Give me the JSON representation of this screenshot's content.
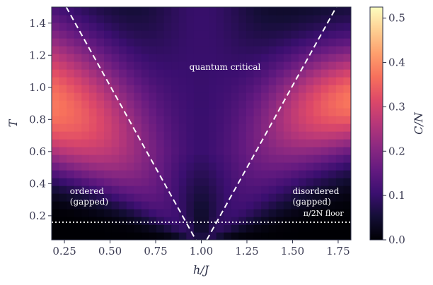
{
  "chart_data": {
    "type": "heatmap",
    "title": "",
    "xlabel": "h/J",
    "ylabel": "T",
    "colorbar_label": "C/N",
    "colormap": "magma",
    "xlim": [
      0.18,
      1.82
    ],
    "ylim": [
      0.05,
      1.5
    ],
    "clim": [
      0.0,
      0.525
    ],
    "x_ticks": [
      0.25,
      0.5,
      0.75,
      1.0,
      1.25,
      1.5,
      1.75
    ],
    "x_tick_labels": [
      "0.25",
      "0.50",
      "0.75",
      "1.00",
      "1.25",
      "1.50",
      "1.75"
    ],
    "y_ticks": [
      0.2,
      0.4,
      0.6,
      0.8,
      1.0,
      1.2,
      1.4
    ],
    "y_tick_labels": [
      "0.2",
      "0.4",
      "0.6",
      "0.8",
      "1.0",
      "1.2",
      "1.4"
    ],
    "colorbar_ticks": [
      0.0,
      0.1,
      0.2,
      0.3,
      0.4,
      0.5
    ],
    "colorbar_tick_labels": [
      "0.0",
      "0.1",
      "0.2",
      "0.3",
      "0.4",
      "0.5"
    ],
    "grid": {
      "nx": 40,
      "ny": 30
    },
    "crossover_lines": [
      {
        "name": "",
        "style": "dashed",
        "color": "#ffffff",
        "points": [
          [
            0.26,
            1.5
          ],
          [
            0.97,
            0.05
          ]
        ]
      },
      {
        "name": "",
        "style": "dashed",
        "color": "#ffffff",
        "points": [
          [
            1.03,
            0.05
          ],
          [
            1.74,
            1.5
          ]
        ]
      }
    ],
    "floor_line": {
      "y": 0.16,
      "style": "dotted",
      "color": "#ffffff"
    },
    "annotations": [
      {
        "key": "quantum_critical",
        "lines": [
          "quantum critical"
        ],
        "x": 1.13,
        "y": 1.11
      },
      {
        "key": "ordered",
        "lines": [
          "ordered",
          "(gapped)"
        ],
        "x": 0.28,
        "y": 0.335
      },
      {
        "key": "disordered",
        "lines": [
          "disordered",
          "(gapped)"
        ],
        "x": 1.5,
        "y": 0.335
      },
      {
        "key": "floor",
        "lines": [
          "π/2N floor"
        ],
        "x": 1.78,
        "y": 0.2
      }
    ]
  }
}
